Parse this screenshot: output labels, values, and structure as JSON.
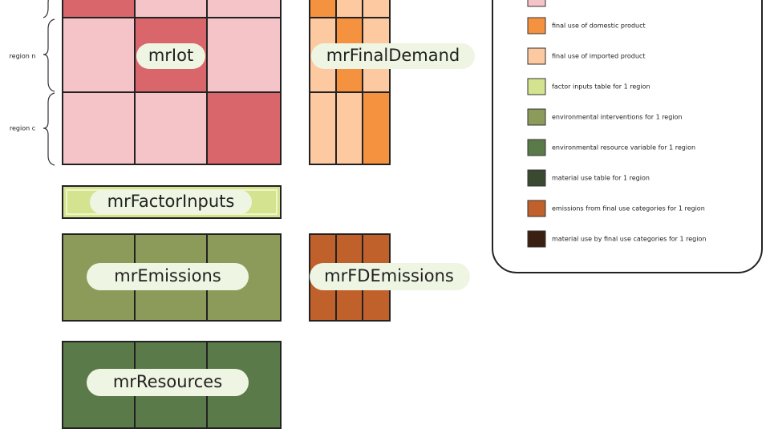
{
  "blocks": {
    "iot": "mrIot",
    "final_demand": "mrFinalDemand",
    "factor_inputs": "mrFactorInputs",
    "emissions": "mrEmissions",
    "fd_emissions": "mrFDEmissions",
    "resources": "mrResources"
  },
  "regions": [
    "region n",
    "region c"
  ],
  "legend": [
    "final use of domestic product",
    "final use of imported product",
    "factor inputs table for 1 region",
    "environmental interventions for 1 region",
    "environmental resource variable for 1 region",
    "material use table for 1 region",
    "emissions from final use categories for 1 region",
    "material use by final use categories for 1 region"
  ]
}
